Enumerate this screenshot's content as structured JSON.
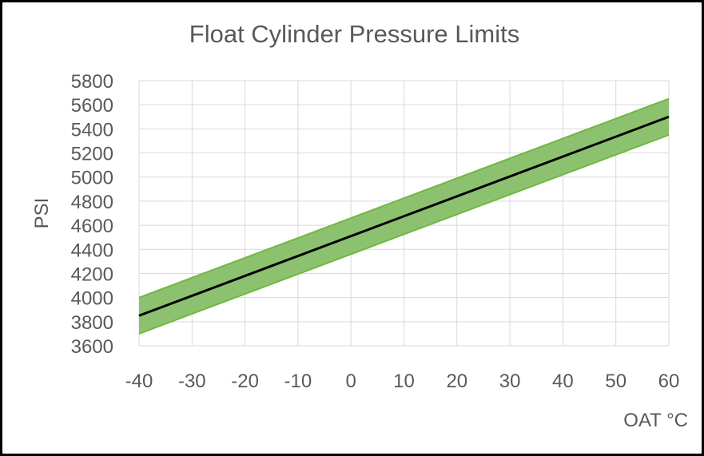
{
  "chart_data": {
    "type": "line",
    "title": "Float Cylinder Pressure Limits",
    "xlabel": "OAT °C",
    "ylabel": "PSI",
    "xlim": [
      -40,
      60
    ],
    "ylim": [
      3600,
      5800
    ],
    "xticks": [
      -40,
      -30,
      -20,
      -10,
      0,
      10,
      20,
      30,
      40,
      50,
      60
    ],
    "yticks": [
      3600,
      3800,
      4000,
      4200,
      4400,
      4600,
      4800,
      5000,
      5200,
      5400,
      5600,
      5800
    ],
    "grid": true,
    "legend": "none",
    "x": [
      -40,
      60
    ],
    "series": [
      {
        "role": "upper-limit",
        "values": [
          4000,
          5650
        ]
      },
      {
        "role": "nominal",
        "values": [
          3850,
          5500
        ]
      },
      {
        "role": "lower-limit",
        "values": [
          3700,
          5350
        ]
      }
    ],
    "colors": {
      "band_fill": "#8cc26f",
      "band_edge": "#70b743",
      "nominal_line": "#000000",
      "grid": "#d9d9d9",
      "text": "#595959"
    }
  }
}
